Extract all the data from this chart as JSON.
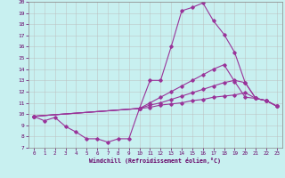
{
  "xlabel": "Windchill (Refroidissement éolien,°C)",
  "background_color": "#c8f0f0",
  "line_color": "#993399",
  "grid_color": "#bbbbbb",
  "xlim": [
    -0.5,
    23.5
  ],
  "ylim": [
    7,
    20
  ],
  "x_ticks": [
    0,
    1,
    2,
    3,
    4,
    5,
    6,
    7,
    8,
    9,
    10,
    11,
    12,
    13,
    14,
    15,
    16,
    17,
    18,
    19,
    20,
    21,
    22,
    23
  ],
  "y_ticks": [
    7,
    8,
    9,
    10,
    11,
    12,
    13,
    14,
    15,
    16,
    17,
    18,
    19,
    20
  ],
  "line1_x": [
    0,
    1,
    2,
    3,
    4,
    5,
    6,
    7,
    8,
    9,
    10,
    11,
    12,
    13,
    14,
    15,
    16,
    17,
    18,
    19,
    20,
    21,
    22,
    23
  ],
  "line1_y": [
    9.8,
    9.4,
    9.7,
    8.9,
    8.4,
    7.8,
    7.8,
    7.5,
    7.8,
    7.8,
    10.5,
    13.0,
    13.0,
    16.0,
    19.2,
    19.5,
    19.9,
    18.3,
    17.1,
    15.5,
    12.8,
    11.4,
    11.2,
    10.7
  ],
  "line2_x": [
    0,
    10,
    11,
    12,
    13,
    14,
    15,
    16,
    17,
    18,
    19,
    20,
    21,
    22,
    23
  ],
  "line2_y": [
    9.8,
    10.5,
    11.0,
    11.5,
    12.0,
    12.5,
    13.0,
    13.5,
    14.0,
    14.4,
    12.9,
    11.5,
    11.4,
    11.2,
    10.7
  ],
  "line3_x": [
    0,
    10,
    11,
    12,
    13,
    14,
    15,
    16,
    17,
    18,
    19,
    20,
    21,
    22,
    23
  ],
  "line3_y": [
    9.8,
    10.5,
    10.8,
    11.0,
    11.3,
    11.6,
    11.9,
    12.2,
    12.5,
    12.8,
    13.0,
    12.8,
    11.4,
    11.2,
    10.7
  ],
  "line4_x": [
    0,
    10,
    11,
    12,
    13,
    14,
    15,
    16,
    17,
    18,
    19,
    20,
    21,
    22,
    23
  ],
  "line4_y": [
    9.8,
    10.5,
    10.6,
    10.8,
    10.9,
    11.0,
    11.2,
    11.3,
    11.5,
    11.6,
    11.7,
    11.9,
    11.4,
    11.2,
    10.7
  ]
}
